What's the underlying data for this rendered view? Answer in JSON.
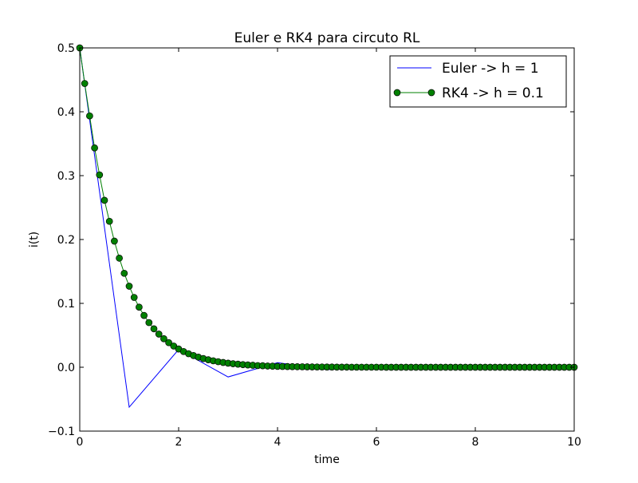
{
  "chart_data": {
    "type": "line",
    "title": "Euler e RK4 para circuto RL",
    "xlabel": "time",
    "ylabel": "i(t)",
    "xlim": [
      0,
      10
    ],
    "ylim": [
      -0.1,
      0.5
    ],
    "xticks": [
      0,
      2,
      4,
      6,
      8,
      10
    ],
    "yticks": [
      -0.1,
      0.0,
      0.1,
      0.2,
      0.3,
      0.4,
      0.5
    ],
    "xtick_labels": [
      "0",
      "2",
      "4",
      "6",
      "8",
      "10"
    ],
    "ytick_labels": [
      "−0.1",
      "0.0",
      "0.1",
      "0.2",
      "0.3",
      "0.4",
      "0.5"
    ],
    "grid": false,
    "legend_position": "upper right",
    "series": [
      {
        "name": "Euler -> h = 1",
        "color": "#0000ff",
        "marker": "none",
        "x": [
          0,
          1,
          2,
          3,
          4,
          5,
          6,
          7,
          8,
          9,
          10
        ],
        "y": [
          0.5,
          -0.0625,
          0.0278,
          -0.0152,
          0.0072,
          -0.0037,
          0.0018,
          -0.0009,
          0.0005,
          -0.0002,
          0.0001
        ]
      },
      {
        "name": "RK4 -> h = 0.1",
        "color": "#008000",
        "marker": "circle",
        "x_start": 0,
        "x_step": 0.1,
        "y": [
          0.5,
          0.4443,
          0.3935,
          0.3434,
          0.3012,
          0.2614,
          0.2285,
          0.1975,
          0.1708,
          0.1471,
          0.1269,
          0.1093,
          0.0941,
          0.0811,
          0.0699,
          0.0602,
          0.0519,
          0.0447,
          0.0385,
          0.0332,
          0.0286,
          0.0246,
          0.0212,
          0.0183,
          0.0158,
          0.0136,
          0.0117,
          0.0101,
          0.0087,
          0.0075,
          0.0064,
          0.0055,
          0.0048,
          0.0041,
          0.0036,
          0.0031,
          0.0026,
          0.0023,
          0.0019,
          0.0017,
          0.0014,
          0.0012,
          0.0011,
          0.0009,
          0.0008,
          0.0007,
          0.0006,
          0.0005,
          0.0004,
          0.0004,
          0.0003,
          0.0003,
          0.0002,
          0.0002,
          0.0002,
          0.0001,
          0.0001,
          0.0001,
          0.0001,
          0.0001,
          0.0001,
          0.0001,
          0.0,
          0.0,
          0.0,
          0.0,
          0.0,
          0.0,
          0.0,
          0.0,
          0.0,
          0.0,
          0.0,
          0.0,
          0.0,
          0.0,
          0.0,
          0.0,
          0.0,
          0.0,
          0.0,
          0.0,
          0.0,
          0.0,
          0.0,
          0.0,
          0.0,
          0.0,
          0.0,
          0.0,
          0.0,
          0.0,
          0.0,
          0.0,
          0.0,
          0.0,
          0.0,
          0.0,
          0.0,
          0.0,
          0.0
        ]
      }
    ]
  }
}
